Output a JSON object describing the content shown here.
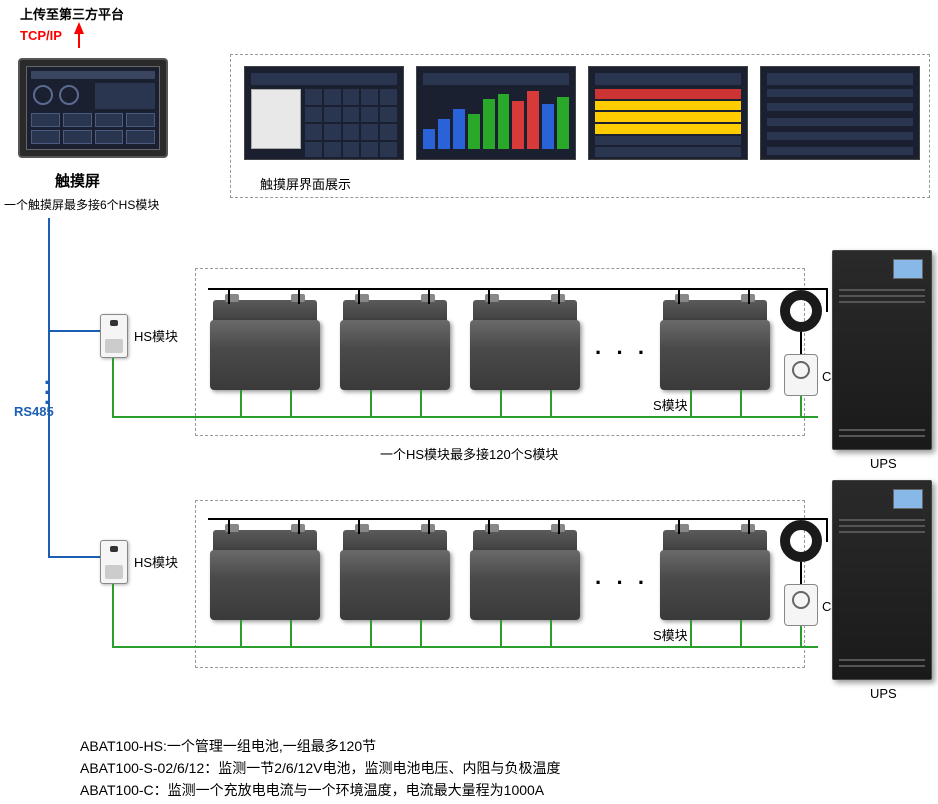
{
  "header": {
    "upload_label": "上传至第三方平台",
    "tcpip_label": "TCP/IP",
    "touchscreen_label": "触摸屏",
    "touchscreen_note": "一个触摸屏最多接6个HS模块",
    "panel_title": "触摸屏界面展示"
  },
  "bus": {
    "rs485_label": "RS485"
  },
  "row": {
    "hs_label": "HS模块",
    "s_label": "S模块",
    "c_label": "C模块",
    "ups_label": "UPS",
    "hs_note": "一个HS模块最多接120个S模块"
  },
  "footer": {
    "line1": "ABAT100-HS:一个管理一组电池,一组最多120节",
    "line2": "ABAT100-S-02/6/12：监测一节2/6/12V电池，监测电池电压、内阻与负极温度",
    "line3": "ABAT100-C：监测一个充放电电流与一个环境温度，电流最大量程为1000A"
  },
  "colors": {
    "tcpip": "#ff0000",
    "rs485": "#1a5fb4",
    "greenwire": "#2a9d2a",
    "blackwire": "#000000"
  },
  "screenshot_bars": {
    "heights": [
      20,
      30,
      40,
      35,
      50,
      55,
      48,
      58,
      45,
      52
    ],
    "colors": [
      "#2a62d8",
      "#2a62d8",
      "#2a62d8",
      "#2aa82a",
      "#2aa82a",
      "#2aa82a",
      "#d83a3a",
      "#d83a3a",
      "#2a62d8",
      "#2aa82a"
    ]
  }
}
